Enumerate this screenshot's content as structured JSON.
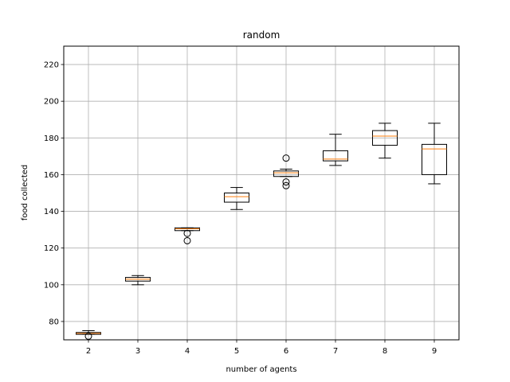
{
  "chart_data": {
    "type": "box",
    "title": "random",
    "xlabel": "number of agents",
    "ylabel": "food collected",
    "ylim": [
      70,
      230
    ],
    "yticks": [
      80,
      100,
      120,
      140,
      160,
      180,
      200,
      220
    ],
    "grid": true,
    "colors": {
      "box": "#000000",
      "median": "#ff7f0e",
      "grid": "#b0b0b0"
    },
    "categories": [
      "2",
      "3",
      "4",
      "5",
      "6",
      "7",
      "8",
      "9"
    ],
    "boxes": [
      {
        "x": "2",
        "whislo": 73,
        "q1": 73,
        "med": 73.5,
        "q3": 74,
        "whishi": 75,
        "fliers": [
          72
        ]
      },
      {
        "x": "3",
        "whislo": 100,
        "q1": 102,
        "med": 103,
        "q3": 104,
        "whishi": 105,
        "fliers": []
      },
      {
        "x": "4",
        "whislo": 129.5,
        "q1": 129.5,
        "med": 130.5,
        "q3": 131,
        "whishi": 131,
        "fliers": [
          128,
          124
        ]
      },
      {
        "x": "5",
        "whislo": 141,
        "q1": 145,
        "med": 148,
        "q3": 150,
        "whishi": 153,
        "fliers": []
      },
      {
        "x": "6",
        "whislo": 159,
        "q1": 159,
        "med": 161,
        "q3": 162,
        "whishi": 163,
        "fliers": [
          169,
          156,
          154
        ]
      },
      {
        "x": "7",
        "whislo": 165,
        "q1": 167.5,
        "med": 168.5,
        "q3": 173,
        "whishi": 182,
        "fliers": []
      },
      {
        "x": "8",
        "whislo": 169,
        "q1": 176,
        "med": 181,
        "q3": 184,
        "whishi": 188,
        "fliers": []
      },
      {
        "x": "9",
        "whislo": 155,
        "q1": 160,
        "med": 174,
        "q3": 176.5,
        "whishi": 188,
        "fliers": []
      }
    ]
  }
}
